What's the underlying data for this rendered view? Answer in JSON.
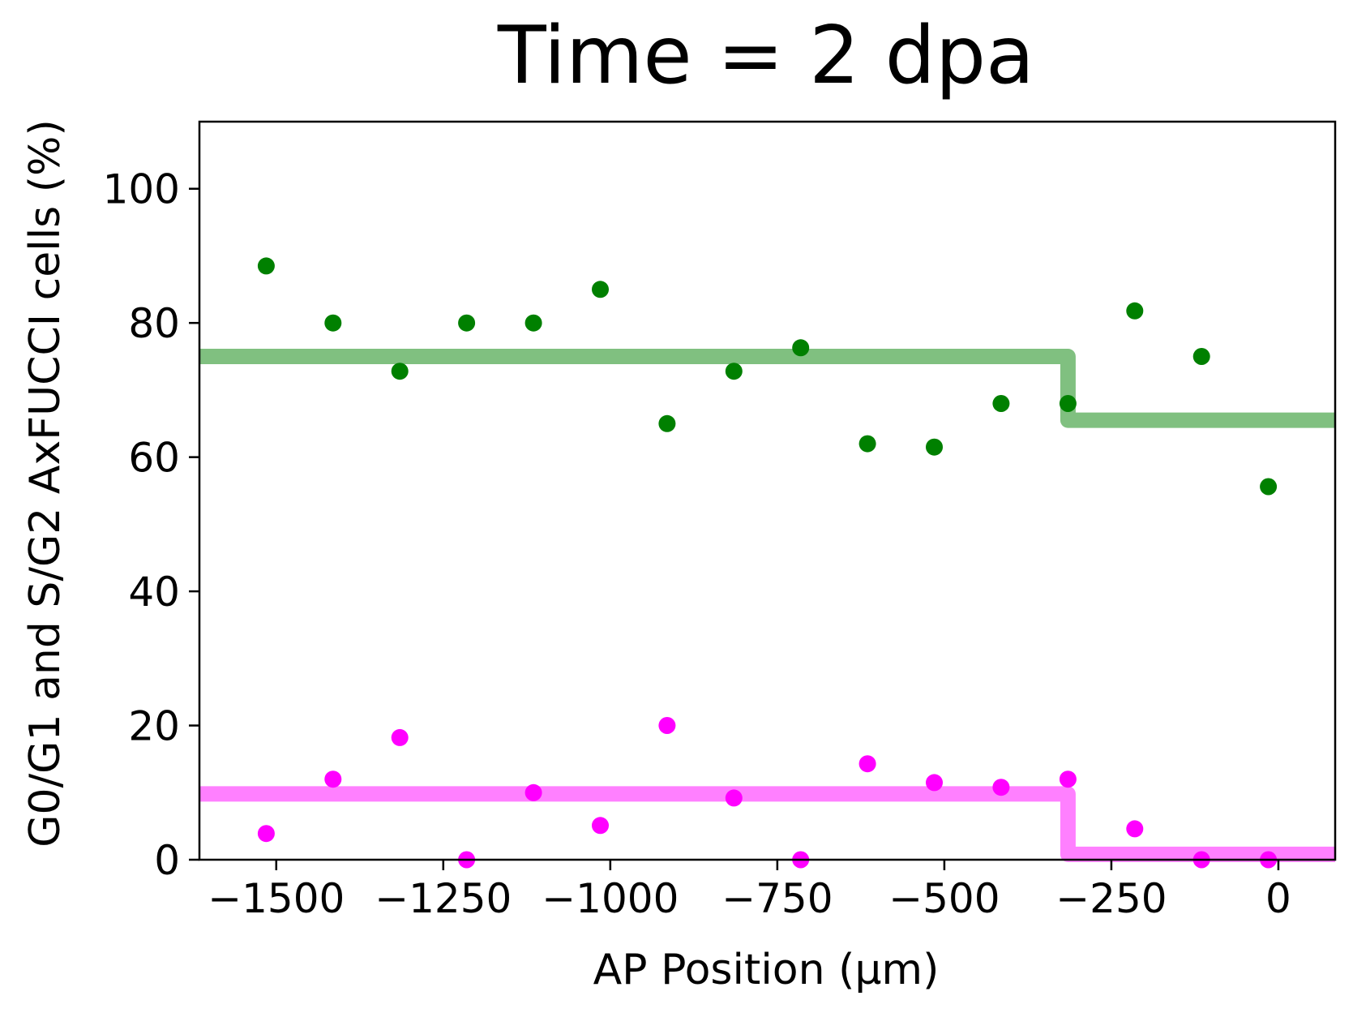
{
  "chart_data": {
    "type": "scatter",
    "title": "Time = 2 dpa",
    "xlabel": "AP Position (μm)",
    "ylabel": "G0/G1 and S/G2 AxFUCCI cells (%)",
    "xlim": [
      -1615,
      85
    ],
    "ylim": [
      0,
      110
    ],
    "xticks": [
      {
        "value": -1500,
        "label": "−1500"
      },
      {
        "value": -1250,
        "label": "−1250"
      },
      {
        "value": -1000,
        "label": "−1000"
      },
      {
        "value": -750,
        "label": "−750"
      },
      {
        "value": -500,
        "label": "−500"
      },
      {
        "value": -250,
        "label": "−250"
      },
      {
        "value": 0,
        "label": "0"
      }
    ],
    "yticks": [
      {
        "value": 0,
        "label": "0"
      },
      {
        "value": 20,
        "label": "20"
      },
      {
        "value": 40,
        "label": "40"
      },
      {
        "value": 60,
        "label": "60"
      },
      {
        "value": 80,
        "label": "80"
      },
      {
        "value": 100,
        "label": "100"
      }
    ],
    "grid": false,
    "legend": "none",
    "series": [
      {
        "color": "#008000",
        "x": [
          -1515,
          -1415,
          -1315,
          -1215,
          -1115,
          -1015,
          -915,
          -815,
          -715,
          -615,
          -515,
          -415,
          -315,
          -215,
          -115,
          -15
        ],
        "y": [
          88.5,
          80.0,
          72.8,
          80.0,
          80.0,
          85.0,
          65.0,
          72.8,
          76.3,
          62.0,
          61.5,
          68.0,
          68.0,
          81.8,
          75.0,
          55.6
        ]
      },
      {
        "color": "#ff00ff",
        "x": [
          -1515,
          -1415,
          -1315,
          -1215,
          -1115,
          -1015,
          -915,
          -815,
          -715,
          -615,
          -515,
          -415,
          -315,
          -215,
          -115,
          -15
        ],
        "y": [
          3.9,
          12.0,
          18.2,
          0.0,
          10.0,
          5.1,
          20.0,
          9.2,
          0.0,
          14.3,
          11.5,
          10.8,
          12.0,
          4.6,
          0.0,
          0.0
        ]
      }
    ],
    "step_lines": [
      {
        "color": "#80c080",
        "points": [
          [
            -1615,
            75.0
          ],
          [
            -315,
            75.0
          ],
          [
            -315,
            65.5
          ],
          [
            85,
            65.5
          ]
        ]
      },
      {
        "color": "#ff80ff",
        "points": [
          [
            -1615,
            9.8
          ],
          [
            -315,
            9.8
          ],
          [
            -315,
            0.8
          ],
          [
            85,
            0.8
          ]
        ]
      }
    ]
  }
}
